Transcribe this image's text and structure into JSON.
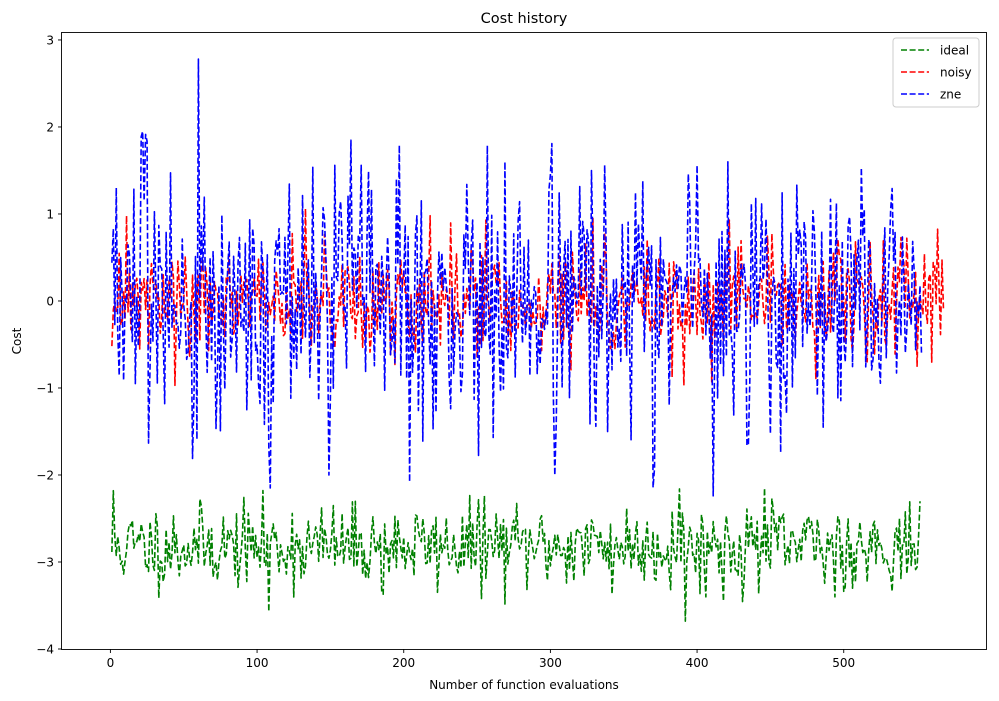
{
  "chart_data": {
    "type": "line",
    "title": "Cost history",
    "xlabel": "Number of function evaluations",
    "ylabel": "Cost",
    "xlim": [
      -33,
      597
    ],
    "ylim": [
      -4,
      3.08
    ],
    "xticks": [
      0,
      100,
      200,
      300,
      400,
      500
    ],
    "yticks": [
      -4,
      -3,
      -2,
      -1,
      0,
      1,
      2,
      3
    ],
    "xtick_labels": [
      "0",
      "100",
      "200",
      "300",
      "400",
      "500"
    ],
    "ytick_labels": [
      "−4",
      "−3",
      "−2",
      "−1",
      "0",
      "1",
      "2",
      "3"
    ],
    "legend_position": "top-right",
    "grid": false,
    "line_style": "dashed",
    "series": [
      {
        "name": "ideal",
        "color": "#008000",
        "n_points": 552,
        "mean": -2.82,
        "range": [
          -3.68,
          -2.15
        ],
        "notable_points": [
          [
            2,
            -2.18
          ],
          [
            108,
            -3.57
          ],
          [
            186,
            -3.37
          ],
          [
            253,
            -3.42
          ],
          [
            255,
            -2.24
          ],
          [
            342,
            -3.37
          ],
          [
            388,
            -2.16
          ],
          [
            392,
            -3.68
          ],
          [
            418,
            -3.45
          ],
          [
            446,
            -2.15
          ],
          [
            494,
            -3.4
          ],
          [
            496,
            -2.48
          ],
          [
            550,
            -3.06
          ]
        ]
      },
      {
        "name": "noisy",
        "color": "#ff0000",
        "n_points": 568,
        "mean": -0.02,
        "range": [
          -0.97,
          1.06
        ],
        "notable_points": [
          [
            2,
            -0.1
          ],
          [
            44,
            -0.97
          ],
          [
            133,
            1.06
          ],
          [
            218,
            0.98
          ],
          [
            410,
            -0.93
          ],
          [
            422,
            0.93
          ],
          [
            550,
            -0.75
          ],
          [
            568,
            -0.1
          ]
        ]
      },
      {
        "name": "zne",
        "color": "#0000ff",
        "n_points": 553,
        "mean": 0.0,
        "range": [
          -2.24,
          2.78
        ],
        "notable_points": [
          [
            2,
            0.83
          ],
          [
            4,
            1.3
          ],
          [
            17,
            -0.95
          ],
          [
            37,
            -1.18
          ],
          [
            56,
            -1.81
          ],
          [
            60,
            2.78
          ],
          [
            108,
            -1.68
          ],
          [
            153,
            1.56
          ],
          [
            171,
            1.56
          ],
          [
            197,
            1.79
          ],
          [
            213,
            -1.61
          ],
          [
            301,
            1.81
          ],
          [
            371,
            -1.92
          ],
          [
            411,
            -2.24
          ],
          [
            421,
            1.6
          ],
          [
            457,
            -1.74
          ],
          [
            512,
            1.53
          ],
          [
            553,
            -0.6
          ]
        ]
      }
    ]
  }
}
